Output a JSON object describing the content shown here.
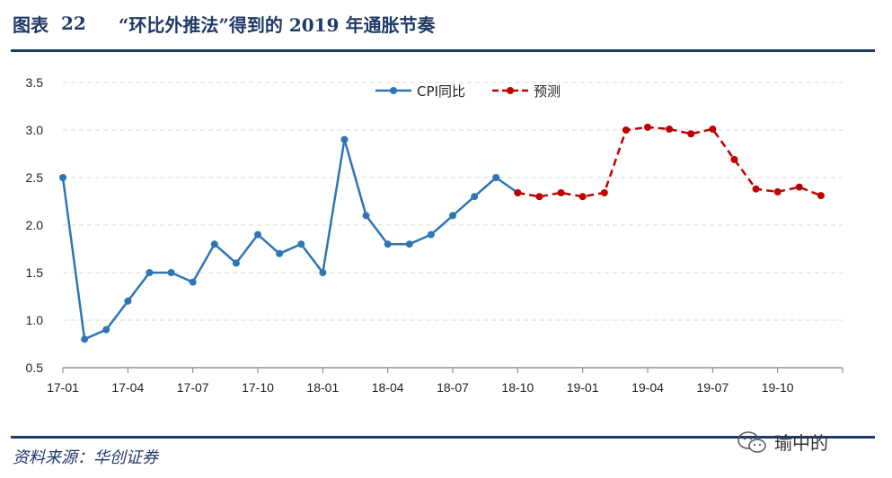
{
  "header": {
    "fig_label": "图表",
    "fig_num": "22",
    "title": "“环比外推法”得到的 2019 年通胀节奏"
  },
  "footer": {
    "source": "资料来源：华创证券",
    "watermark_text": "瑜中的"
  },
  "colors": {
    "brand": "#1f3a68",
    "cpi": "#2e75b6",
    "forecast": "#c00000",
    "grid": "#d9d9d9",
    "axis": "#7f7f7f"
  },
  "chart_data": {
    "type": "line",
    "title": "",
    "xlabel": "",
    "ylabel": "",
    "ylim": [
      0.5,
      3.5
    ],
    "yticks": [
      "0.5",
      "1.0",
      "1.5",
      "2.0",
      "2.5",
      "3.0",
      "3.5"
    ],
    "ytick_values": [
      0.5,
      1.0,
      1.5,
      2.0,
      2.5,
      3.0,
      3.5
    ],
    "x": [
      "17-01",
      "17-02",
      "17-03",
      "17-04",
      "17-05",
      "17-06",
      "17-07",
      "17-08",
      "17-09",
      "17-10",
      "17-11",
      "17-12",
      "18-01",
      "18-02",
      "18-03",
      "18-04",
      "18-05",
      "18-06",
      "18-07",
      "18-08",
      "18-09",
      "18-10",
      "18-11",
      "18-12",
      "19-01",
      "19-02",
      "19-03",
      "19-04",
      "19-05",
      "19-06",
      "19-07",
      "19-08",
      "19-09",
      "19-10",
      "19-11",
      "19-12"
    ],
    "xtick_labels": [
      "17-01",
      "17-04",
      "17-07",
      "17-10",
      "18-01",
      "18-04",
      "18-07",
      "18-10",
      "19-01",
      "19-04",
      "19-07",
      "19-10"
    ],
    "grid": true,
    "legend_position": "top",
    "series": [
      {
        "name": "CPI同比",
        "style": "solid",
        "x": [
          "17-01",
          "17-02",
          "17-03",
          "17-04",
          "17-05",
          "17-06",
          "17-07",
          "17-08",
          "17-09",
          "17-10",
          "17-11",
          "17-12",
          "18-01",
          "18-02",
          "18-03",
          "18-04",
          "18-05",
          "18-06",
          "18-07",
          "18-08",
          "18-09",
          "18-10"
        ],
        "values": [
          2.5,
          0.8,
          0.9,
          1.2,
          1.5,
          1.5,
          1.4,
          1.8,
          1.6,
          1.9,
          1.7,
          1.8,
          1.5,
          2.9,
          2.1,
          1.8,
          1.8,
          1.9,
          2.1,
          2.3,
          2.5,
          2.34
        ]
      },
      {
        "name": "预测",
        "style": "dashed",
        "x": [
          "18-10",
          "18-11",
          "18-12",
          "19-01",
          "19-02",
          "19-03",
          "19-04",
          "19-05",
          "19-06",
          "19-07",
          "19-08",
          "19-09",
          "19-10",
          "19-11",
          "19-12"
        ],
        "values": [
          2.34,
          2.3,
          2.34,
          2.3,
          2.34,
          3.0,
          3.03,
          3.01,
          2.96,
          3.01,
          2.69,
          2.38,
          2.35,
          2.4,
          2.31
        ]
      }
    ]
  }
}
